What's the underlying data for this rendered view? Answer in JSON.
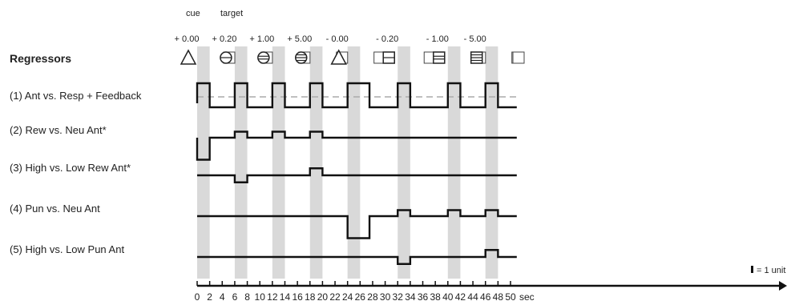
{
  "header": {
    "cue_label": "cue",
    "target_label": "target"
  },
  "chart_data": {
    "type": "line",
    "title": "",
    "ylabel_heading": "Regressors",
    "xlabel": "sec",
    "xlim": [
      0,
      51
    ],
    "xticks": [
      0,
      2,
      4,
      6,
      8,
      10,
      12,
      14,
      16,
      18,
      20,
      22,
      24,
      26,
      28,
      30,
      32,
      34,
      36,
      38,
      40,
      42,
      44,
      46,
      48,
      50
    ],
    "shaded_intervals": [
      [
        0,
        2
      ],
      [
        6,
        8
      ],
      [
        12,
        14
      ],
      [
        18,
        20
      ],
      [
        24,
        26
      ],
      [
        32,
        34
      ],
      [
        40,
        42
      ],
      [
        46,
        48
      ]
    ],
    "trial_labels": [
      {
        "x": 0,
        "label": "+ 0.00",
        "icon": "triangle-icon"
      },
      {
        "x": 6,
        "label": "+ 0.20",
        "icon": "circle-one-line-icon"
      },
      {
        "x": 12,
        "label": "+ 1.00",
        "icon": "circle-two-lines-icon"
      },
      {
        "x": 18,
        "label": "+ 5.00",
        "icon": "circle-three-lines-icon"
      },
      {
        "x": 24,
        "label": "- 0.00",
        "icon": "triangle-icon"
      },
      {
        "x": 32,
        "label": "- 0.20",
        "icon": "square-one-line-icon"
      },
      {
        "x": 40,
        "label": "- 1.00",
        "icon": "square-two-lines-icon"
      },
      {
        "x": 46,
        "label": "- 5.00",
        "icon": "square-three-lines-icon"
      }
    ],
    "target_square_icon": "square-icon",
    "scale_label": "= 1 unit",
    "series": [
      {
        "name": "(1) Ant vs. Resp + Feedback",
        "baseline": 0.2,
        "segments": [
          [
            0,
            1
          ],
          [
            2,
            -0.2
          ],
          [
            6,
            1
          ],
          [
            8,
            -0.2
          ],
          [
            12,
            1
          ],
          [
            14,
            -0.2
          ],
          [
            18,
            1
          ],
          [
            20,
            -0.2
          ],
          [
            24,
            1
          ],
          [
            27.5,
            -0.2
          ],
          [
            32,
            1
          ],
          [
            34,
            -0.2
          ],
          [
            40,
            1
          ],
          [
            42,
            -0.2
          ],
          [
            46,
            1
          ],
          [
            48,
            -0.2
          ]
        ],
        "end": 51
      },
      {
        "name": "(2) Rew vs. Neu Ant*",
        "baseline": 0,
        "segments": [
          [
            0,
            -1.1
          ],
          [
            2,
            0
          ],
          [
            6,
            0.3
          ],
          [
            8,
            0
          ],
          [
            12,
            0.3
          ],
          [
            14,
            0
          ],
          [
            18,
            0.3
          ],
          [
            20,
            0
          ]
        ],
        "end": 51
      },
      {
        "name": "(3) High vs. Low Rew Ant*",
        "baseline": 0,
        "segments": [
          [
            6,
            -0.35
          ],
          [
            8,
            0
          ],
          [
            18,
            0.35
          ],
          [
            20,
            0
          ]
        ],
        "end": 51
      },
      {
        "name": "(4) Pun vs. Neu Ant",
        "baseline": 0,
        "segments": [
          [
            24,
            -1.1
          ],
          [
            27.5,
            0
          ],
          [
            32,
            0.3
          ],
          [
            34,
            0
          ],
          [
            40,
            0.3
          ],
          [
            42,
            0
          ],
          [
            46,
            0.3
          ],
          [
            48,
            0
          ]
        ],
        "end": 51
      },
      {
        "name": "(5) High vs. Low Pun Ant",
        "baseline": 0,
        "segments": [
          [
            32,
            -0.35
          ],
          [
            34,
            0
          ],
          [
            46,
            0.35
          ],
          [
            48,
            0
          ]
        ],
        "end": 51
      }
    ]
  }
}
